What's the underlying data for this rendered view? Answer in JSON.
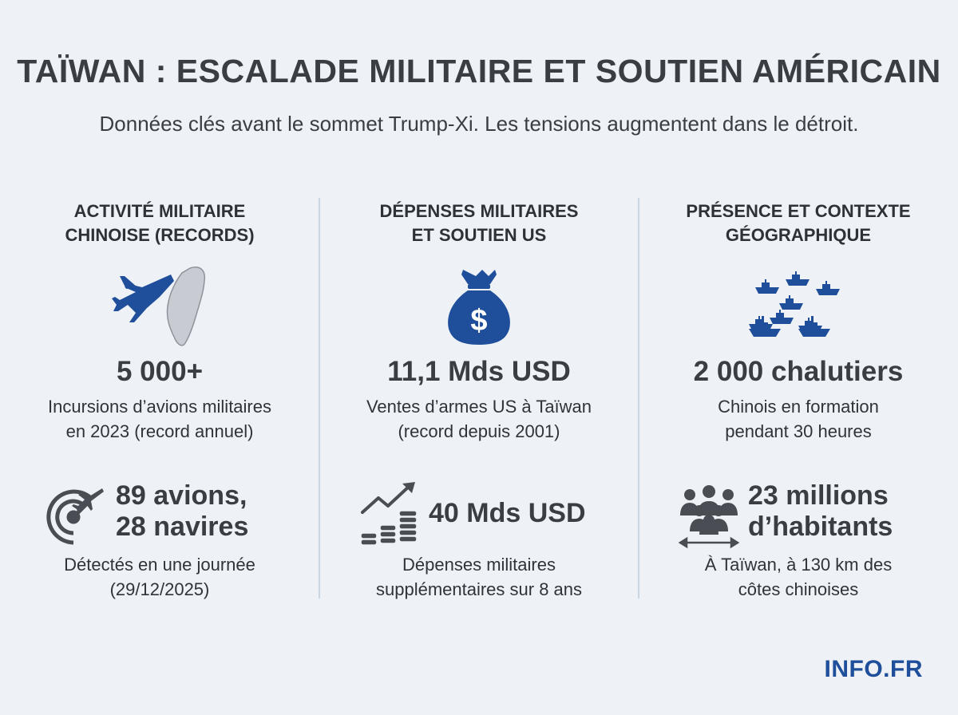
{
  "title": "TAÏWAN : ESCALADE MILITAIRE ET SOUTIEN AMÉRICAIN",
  "subtitle": "Données clés avant le sommet Trump-Xi. Les tensions augmentent dans le détroit.",
  "colors": {
    "accent": "#1f4e9a",
    "text": "#3a3d44",
    "background": "#eef2f7",
    "icon_gray": "#4a4d54"
  },
  "columns": [
    {
      "heading_line1": "ACTIVITÉ MILITAIRE",
      "heading_line2": "CHINOISE (RECORDS)",
      "icon": "fighter-jet-and-taiwan-map-icon",
      "big_value": "5 000+",
      "desc_line1": "Incursions d’avions militaires",
      "desc_line2": "en 2023 (record annuel)",
      "stat_icon": "radar-plane-icon",
      "stat_line1": "89 avions,",
      "stat_line2": "28 navires",
      "stat_desc_line1": "Détectés en une journée",
      "stat_desc_line2": "(29/12/2025)"
    },
    {
      "heading_line1": "DÉPENSES MILITAIRES",
      "heading_line2": "ET SOUTIEN US",
      "icon": "money-bag-icon",
      "big_value": "11,1 Mds USD",
      "desc_line1": "Ventes d’armes US à Taïwan",
      "desc_line2": "(record depuis 2001)",
      "stat_icon": "coins-growth-icon",
      "stat_line1": "40 Mds USD",
      "stat_desc_line1": "Dépenses militaires",
      "stat_desc_line2": "supplémentaires sur 8 ans"
    },
    {
      "heading_line1": "PRÉSENCE ET CONTEXTE",
      "heading_line2": "GÉOGRAPHIQUE",
      "icon": "fishing-boats-icon",
      "big_value": "2 000 chalutiers",
      "desc_line1": "Chinois en formation",
      "desc_line2": "pendant 30 heures",
      "stat_icon": "population-distance-icon",
      "stat_line1": "23 millions",
      "stat_line2": "d’habitants",
      "stat_desc_line1": "À Taïwan, à 130 km des",
      "stat_desc_line2": "côtes chinoises"
    }
  ],
  "brand": "INFO.FR"
}
